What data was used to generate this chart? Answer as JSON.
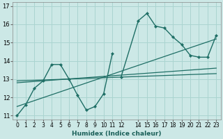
{
  "xlabel": "Humidex (Indice chaleur)",
  "background_color": "#cce8e6",
  "grid_color": "#aad4d0",
  "line_color": "#1e6e65",
  "xlim": [
    -0.5,
    23.5
  ],
  "ylim": [
    10.8,
    17.2
  ],
  "yticks": [
    11,
    12,
    13,
    14,
    15,
    16,
    17
  ],
  "xticks": [
    0,
    1,
    2,
    3,
    4,
    5,
    6,
    7,
    8,
    9,
    10,
    11,
    12,
    14,
    15,
    16,
    17,
    18,
    19,
    20,
    21,
    22,
    23
  ],
  "xtick_labels": [
    "0",
    "1",
    "2",
    "3",
    "4",
    "5",
    "6",
    "7",
    "8",
    "9",
    "10",
    "11",
    "12",
    "14",
    "15",
    "16",
    "17",
    "18",
    "19",
    "20",
    "21",
    "22",
    "23"
  ],
  "series_main": {
    "x1": [
      0,
      1,
      2,
      3,
      4,
      5,
      6,
      7,
      8,
      9,
      10,
      11
    ],
    "y1": [
      11.0,
      11.6,
      12.5,
      12.9,
      13.8,
      13.8,
      13.0,
      12.1,
      11.3,
      11.5,
      12.2,
      14.4
    ],
    "x2": [
      12,
      14,
      15,
      16,
      17,
      18,
      19,
      20,
      21,
      22,
      23
    ],
    "y2": [
      13.1,
      16.2,
      16.6,
      15.9,
      15.8,
      15.3,
      14.9,
      14.3,
      14.2,
      14.2,
      15.4
    ]
  },
  "trend_lines": [
    {
      "x": [
        0,
        23
      ],
      "y": [
        11.5,
        15.2
      ]
    },
    {
      "x": [
        0,
        23
      ],
      "y": [
        12.8,
        13.6
      ]
    },
    {
      "x": [
        0,
        23
      ],
      "y": [
        12.9,
        13.3
      ]
    }
  ]
}
